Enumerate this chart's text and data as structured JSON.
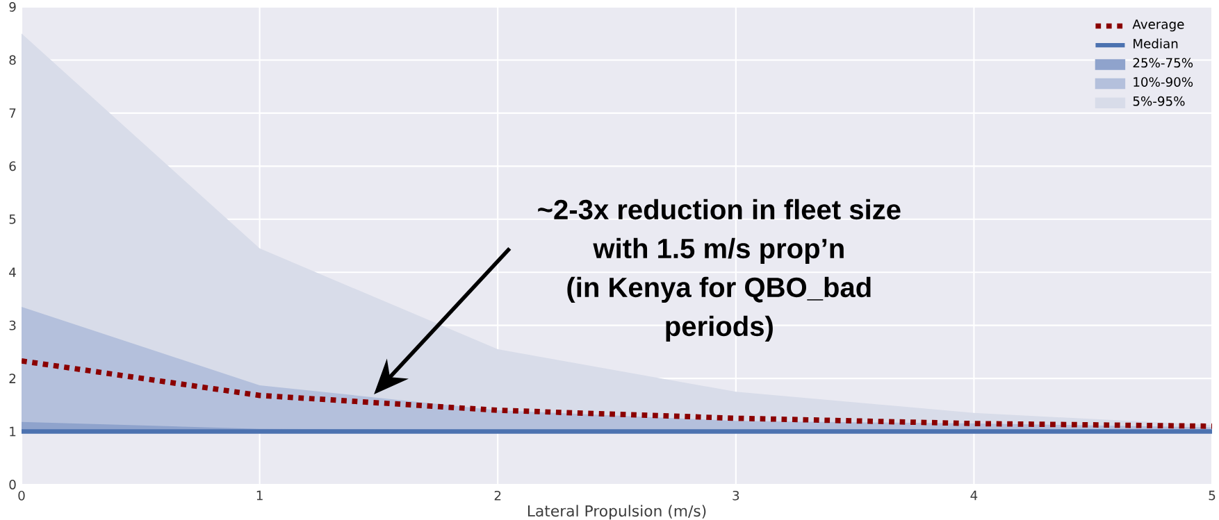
{
  "chart_data": {
    "type": "line",
    "xlabel": "Lateral Propulsion (m/s)",
    "x": [
      0,
      1,
      2,
      3,
      4,
      5
    ],
    "series": [
      {
        "name": "Average",
        "color": "#8b0000",
        "line_style": "dotted",
        "values": [
          2.33,
          1.68,
          1.4,
          1.25,
          1.15,
          1.1
        ]
      },
      {
        "name": "Median",
        "color": "#4c72b0",
        "line_style": "solid",
        "values": [
          1.0,
          1.0,
          1.0,
          1.0,
          1.0,
          1.0
        ]
      },
      {
        "name": "25%-75%",
        "type": "area",
        "color": "#8fa3cc",
        "values": [
          1.18,
          1.05,
          1.03,
          1.02,
          1.02,
          1.02
        ]
      },
      {
        "name": "10%-90%",
        "type": "area",
        "color": "#b4c0dc",
        "values": [
          3.35,
          1.87,
          1.4,
          1.2,
          1.15,
          1.08
        ]
      },
      {
        "name": "5%-95%",
        "type": "area",
        "color": "#d8dce9",
        "values": [
          8.5,
          4.45,
          2.55,
          1.75,
          1.35,
          1.12
        ]
      }
    ],
    "xlim": [
      0,
      5
    ],
    "ylim": [
      0,
      9
    ],
    "xticks": [
      0,
      1,
      2,
      3,
      4,
      5
    ],
    "yticks": [
      0,
      1,
      2,
      3,
      4,
      5,
      6,
      7,
      8,
      9
    ],
    "grid": true,
    "legend": "top right",
    "marker": "none",
    "annotations": [
      "~2-3x reduction in fleet size",
      "with 1.5 m/s prop’n",
      "(in Kenya for QBO_bad",
      "periods)"
    ]
  }
}
